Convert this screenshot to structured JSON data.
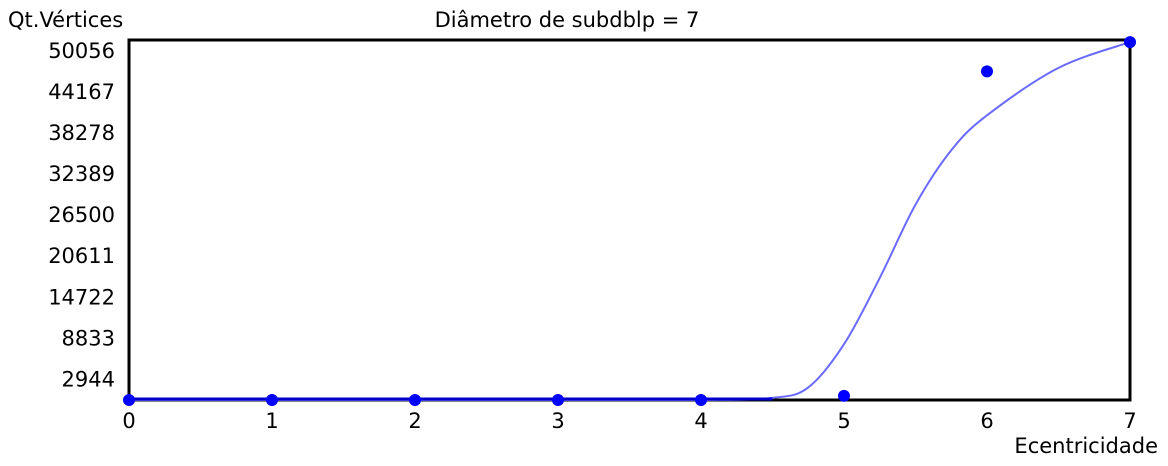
{
  "chart_data": {
    "type": "scatter",
    "title": "Diâmetro de subdblp = 7",
    "xlabel": "Ecentricidade",
    "ylabel": "Qt.Vértices",
    "xlim": [
      0,
      7
    ],
    "ylim": [
      0,
      51600
    ],
    "x_ticks": [
      0,
      1,
      2,
      3,
      4,
      5,
      6,
      7
    ],
    "y_ticks": [
      2944,
      8833,
      14722,
      20611,
      26500,
      32389,
      38278,
      44167,
      50056
    ],
    "grid": false,
    "legend": "none",
    "series": [
      {
        "type": "scatter",
        "x": [
          0,
          1,
          2,
          3,
          4,
          5,
          6,
          7
        ],
        "y": [
          0,
          0,
          0,
          0,
          0,
          600,
          47100,
          51300
        ],
        "color": "#0000ff"
      },
      {
        "type": "line",
        "x": [
          0,
          1,
          2,
          3,
          4,
          4.5,
          4.75,
          5,
          5.25,
          5.5,
          5.75,
          6,
          6.5,
          7
        ],
        "y": [
          0,
          0,
          0,
          0,
          0,
          300,
          1800,
          8000,
          17500,
          28000,
          35800,
          40800,
          47600,
          51300
        ],
        "color": "#6a6aff"
      }
    ]
  }
}
